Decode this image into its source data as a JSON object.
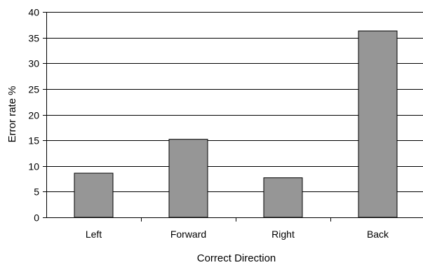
{
  "chart_data": {
    "type": "bar",
    "categories": [
      "Left",
      "Forward",
      "Right",
      "Back"
    ],
    "values": [
      8.6,
      15.2,
      7.7,
      36.3
    ],
    "xlabel": "Correct Direction",
    "ylabel": "Error rate %",
    "ylim": [
      0,
      40
    ],
    "yticks": [
      0,
      5,
      10,
      15,
      20,
      25,
      30,
      35,
      40
    ],
    "grid": true,
    "legend": "none",
    "bar_color": "#969696"
  }
}
